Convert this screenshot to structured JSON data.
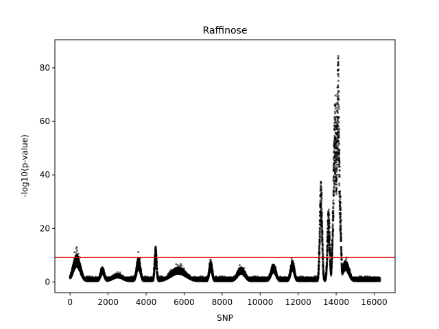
{
  "chart_data": {
    "type": "scatter",
    "title": "Raffinose",
    "xlabel": "SNP",
    "ylabel": "-log10(p-value)",
    "xlim": [
      -800,
      17100
    ],
    "ylim": [
      -4,
      90.5
    ],
    "xticks": [
      0,
      2000,
      4000,
      6000,
      8000,
      10000,
      12000,
      14000,
      16000
    ],
    "yticks": [
      0,
      20,
      40,
      60,
      80
    ],
    "threshold": 9.2,
    "threshold_color": "#e00000",
    "point_color": "#000000",
    "n_snps": 16300,
    "grid": false,
    "clusters": [
      {
        "center": 350,
        "width": 280,
        "peak": 10.2
      },
      {
        "center": 1700,
        "width": 150,
        "peak": 5.5
      },
      {
        "center": 2500,
        "width": 400,
        "peak": 3.0
      },
      {
        "center": 3600,
        "width": 150,
        "peak": 9.0
      },
      {
        "center": 4500,
        "width": 80,
        "peak": 13.5
      },
      {
        "center": 5700,
        "width": 600,
        "peak": 5.5
      },
      {
        "center": 7400,
        "width": 120,
        "peak": 7.8
      },
      {
        "center": 9000,
        "width": 300,
        "peak": 5.5
      },
      {
        "center": 10700,
        "width": 200,
        "peak": 6.5
      },
      {
        "center": 11700,
        "width": 150,
        "peak": 8.0
      },
      {
        "center": 13200,
        "width": 90,
        "peak": 39.0
      },
      {
        "center": 13600,
        "width": 90,
        "peak": 28.0
      },
      {
        "center": 13950,
        "width": 130,
        "peak": 70.0
      },
      {
        "center": 14100,
        "width": 100,
        "peak": 86.0
      },
      {
        "center": 14200,
        "width": 80,
        "peak": 35.0
      },
      {
        "center": 14500,
        "width": 250,
        "peak": 8.0
      }
    ]
  }
}
